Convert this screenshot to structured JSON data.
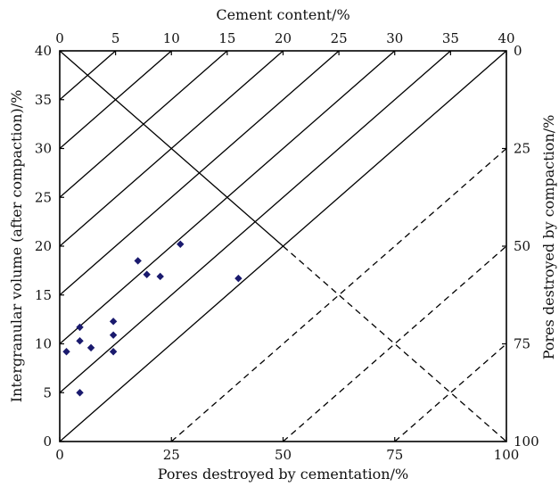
{
  "chart_data": {
    "type": "scatter",
    "title": "",
    "axes": {
      "left": {
        "label": "Intergranular volume (after compaction)/%",
        "range": [
          0,
          40
        ],
        "ticks": [
          0,
          5,
          10,
          15,
          20,
          25,
          30,
          35,
          40
        ]
      },
      "bottom": {
        "label": "Pores destroyed by cementation/%",
        "range": [
          0,
          100
        ],
        "ticks": [
          0,
          25,
          50,
          75,
          100
        ]
      },
      "top": {
        "label": "Cement content/%",
        "range": [
          0,
          40
        ],
        "ticks": [
          0,
          5,
          10,
          15,
          20,
          25,
          30,
          35,
          40
        ]
      },
      "right": {
        "label": "Pores destroyed by compaction/%",
        "reversed": true,
        "ticks": [
          0,
          25,
          50,
          75,
          100
        ]
      }
    },
    "cement_isolines": [
      5,
      10,
      15,
      20,
      25,
      30,
      35,
      40
    ],
    "compaction_isolines": [
      25,
      50,
      75
    ],
    "solid_diagonal": {
      "from": [
        0,
        40
      ],
      "to": [
        100,
        0
      ]
    },
    "points": [
      {
        "x": 1.5,
        "y": 9.2
      },
      {
        "x": 4.5,
        "y": 11.7
      },
      {
        "x": 4.5,
        "y": 10.3
      },
      {
        "x": 4.5,
        "y": 5.0
      },
      {
        "x": 7.0,
        "y": 9.6
      },
      {
        "x": 12.0,
        "y": 12.3
      },
      {
        "x": 12.0,
        "y": 10.9
      },
      {
        "x": 12.0,
        "y": 9.2
      },
      {
        "x": 17.5,
        "y": 18.5
      },
      {
        "x": 19.5,
        "y": 17.1
      },
      {
        "x": 22.5,
        "y": 16.9
      },
      {
        "x": 27.0,
        "y": 20.2
      },
      {
        "x": 40.0,
        "y": 16.7
      }
    ],
    "colors": {
      "points": "#1a1a6e",
      "lines": "#000000"
    },
    "grid": false
  }
}
